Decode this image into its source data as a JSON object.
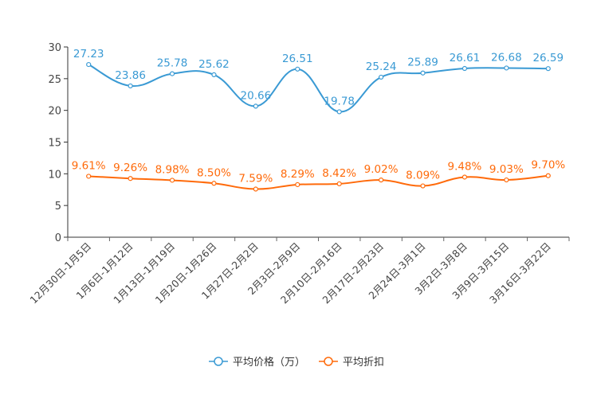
{
  "chart_data": {
    "type": "line",
    "title": "",
    "categories": [
      "12月30日-1月5日",
      "1月6日-1月12日",
      "1月13日-1月19日",
      "1月20日-1月26日",
      "1月27日-2月2日",
      "2月3日-2月9日",
      "2月10日-2月16日",
      "2月17日-2月23日",
      "2月24日-3月1日",
      "3月2日-3月8日",
      "3月9日-3月15日",
      "3月16日-3月22日"
    ],
    "ylim": [
      0,
      30
    ],
    "yticks": [
      "0",
      "5",
      "10",
      "15",
      "20",
      "25",
      "30"
    ],
    "grid": false,
    "legend_position": "bottom",
    "series": [
      {
        "name": "平均价格（万）",
        "color": "#3a9ad4",
        "values": [
          27.23,
          23.86,
          25.78,
          25.62,
          20.66,
          26.51,
          19.78,
          25.24,
          25.89,
          26.61,
          26.68,
          26.59
        ],
        "labels": [
          "27.23",
          "23.86",
          "25.78",
          "25.62",
          "20.66",
          "26.51",
          "19.78",
          "25.24",
          "25.89",
          "26.61",
          "26.68",
          "26.59"
        ]
      },
      {
        "name": "平均折扣",
        "color": "#ff6a0a",
        "values": [
          9.61,
          9.26,
          8.98,
          8.5,
          7.59,
          8.29,
          8.42,
          9.02,
          8.09,
          9.48,
          9.03,
          9.7
        ],
        "labels": [
          "9.61%",
          "9.26%",
          "8.98%",
          "8.50%",
          "7.59%",
          "8.29%",
          "8.42%",
          "9.02%",
          "8.09%",
          "9.48%",
          "9.03%",
          "9.70%"
        ]
      }
    ]
  }
}
